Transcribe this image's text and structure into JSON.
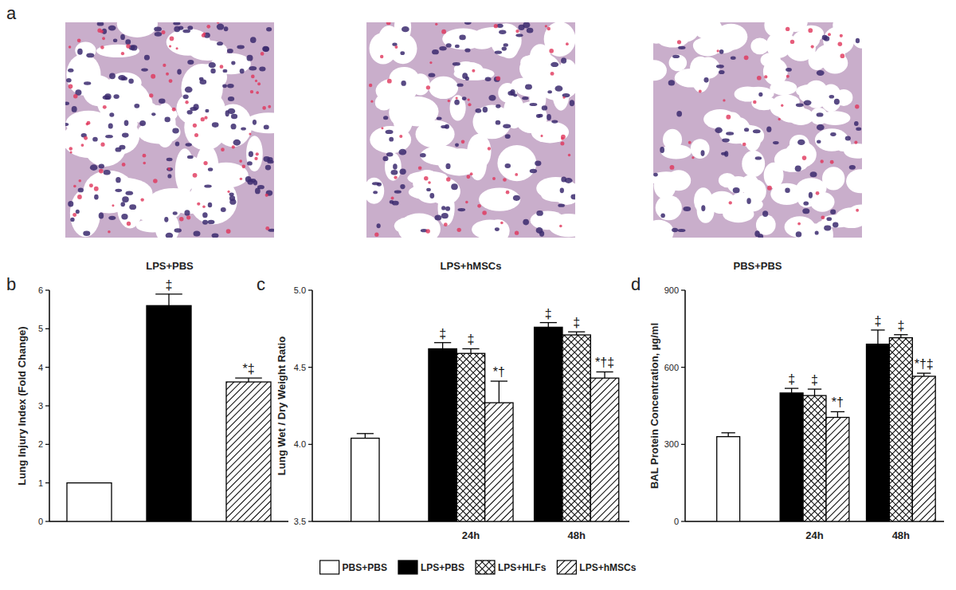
{
  "panel_labels": [
    "a",
    "b",
    "c",
    "d"
  ],
  "images": [
    {
      "caption": "LPS+PBS"
    },
    {
      "caption": "LPS+hMSCs"
    },
    {
      "caption": "PBS+PBS"
    }
  ],
  "chart_data": [
    {
      "type": "bar",
      "y_label": "Lung Injury Index (Fold Change)",
      "categories": [
        null,
        null,
        null
      ],
      "ylim": [
        0,
        6
      ],
      "yticks": [
        0,
        1,
        2,
        3,
        4,
        5,
        6
      ],
      "series": [
        {
          "color": "#ffffff",
          "line_style": "solid",
          "values": [
            1,
            null,
            null
          ],
          "errors": [
            null,
            null,
            null
          ],
          "annotations": [
            null,
            null,
            null
          ]
        },
        {
          "color": "#000000",
          "line_style": "solid",
          "values": [
            null,
            5.6,
            null
          ],
          "errors": [
            null,
            0.3,
            null
          ],
          "annotations": [
            null,
            "‡",
            null
          ]
        },
        {
          "color": "#ffffff",
          "line_style": "hatch",
          "values": [
            null,
            null,
            3.62
          ],
          "errors": [
            null,
            null,
            0.1
          ],
          "annotations": [
            null,
            null,
            "*‡"
          ]
        }
      ]
    },
    {
      "type": "bar",
      "y_label": "Lung Wet / Dry Weight Ratio",
      "categories": [
        null,
        "24h",
        "48h"
      ],
      "ylim": [
        3.5,
        5.0
      ],
      "yticks": [
        {
          "value": 3.5,
          "label": "3.5"
        },
        {
          "value": 4,
          "label": "4.0"
        },
        {
          "value": 4.5,
          "label": "4.5"
        },
        {
          "value": 5,
          "label": "5.0"
        }
      ],
      "series": [
        {
          "color": "#ffffff",
          "line_style": "solid",
          "values": [
            4.04,
            null,
            null
          ],
          "errors": [
            0.03,
            null,
            null
          ],
          "annotations": [
            null,
            null,
            null
          ]
        },
        {
          "color": "#000000",
          "line_style": "solid",
          "values": [
            null,
            4.62,
            4.76
          ],
          "errors": [
            null,
            0.04,
            0.03
          ],
          "annotations": [
            null,
            "‡",
            "‡"
          ]
        },
        {
          "color": "#ffffff",
          "line_style": "crosshatch",
          "values": [
            null,
            4.59,
            4.71
          ],
          "errors": [
            null,
            0.03,
            0.02
          ],
          "annotations": [
            null,
            "‡",
            "‡"
          ]
        },
        {
          "color": "#ffffff",
          "line_style": "hatch",
          "values": [
            null,
            4.27,
            4.43
          ],
          "errors": [
            null,
            0.14,
            0.04
          ],
          "annotations": [
            null,
            "*†",
            "*†‡"
          ]
        }
      ]
    },
    {
      "type": "bar",
      "y_label": "BAL Protein Concentration, µg/ml",
      "categories": [
        null,
        "24h",
        "48h"
      ],
      "ylim": [
        0,
        900
      ],
      "yticks": [
        0,
        300,
        600,
        900
      ],
      "legend": "bottom",
      "series": [
        {
          "name": "PBS+PBS",
          "color": "#ffffff",
          "line_style": "solid",
          "values": [
            330,
            null,
            null
          ],
          "errors": [
            15,
            null,
            null
          ],
          "annotations": [
            null,
            null,
            null
          ]
        },
        {
          "name": "LPS+PBS",
          "color": "#000000",
          "line_style": "solid",
          "values": [
            null,
            500,
            690
          ],
          "errors": [
            null,
            18,
            55
          ],
          "annotations": [
            null,
            "‡",
            "‡"
          ]
        },
        {
          "name": "LPS+HLFs",
          "color": "#ffffff",
          "line_style": "crosshatch",
          "values": [
            null,
            490,
            715
          ],
          "errors": [
            null,
            25,
            12
          ],
          "annotations": [
            null,
            "‡",
            "‡"
          ]
        },
        {
          "name": "LPS+hMSCs",
          "color": "#ffffff",
          "line_style": "hatch",
          "values": [
            null,
            405,
            565
          ],
          "errors": [
            null,
            22,
            12
          ],
          "annotations": [
            null,
            "*†",
            "*†‡"
          ]
        }
      ]
    }
  ]
}
